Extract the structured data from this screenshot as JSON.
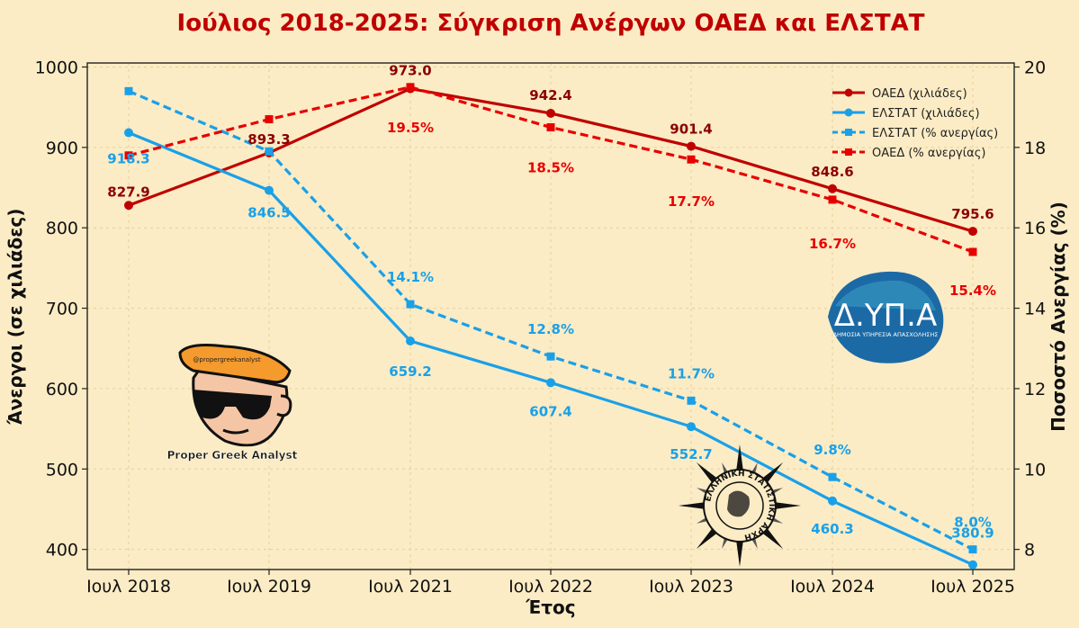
{
  "chart_data": {
    "type": "line",
    "title": "Ιούλιος 2018-2025: Σύγκριση Ανέργων ΟΑΕΔ και ΕΛΣΤΑΤ",
    "xlabel": "Έτος",
    "ylabel": "Άνεργοι (σε χιλιάδες)",
    "y2label": "Ποσοστό Ανεργίας (%)",
    "categories": [
      "Ιουλ 2018",
      "Ιουλ 2019",
      "Ιουλ 2021",
      "Ιουλ 2022",
      "Ιουλ 2023",
      "Ιουλ 2024",
      "Ιουλ 2025"
    ],
    "ylim": [
      375,
      1005
    ],
    "y2lim": [
      7.5,
      20.1
    ],
    "yticks": [
      400,
      500,
      600,
      700,
      800,
      900,
      1000
    ],
    "y2ticks": [
      8,
      10,
      12,
      14,
      16,
      18,
      20
    ],
    "grid": true,
    "legend_position": "top-right",
    "series": [
      {
        "name": "ΟΑΕΔ (χιλιάδες)",
        "axis": "left",
        "style": "solid",
        "marker": "circle",
        "color": "#c00000",
        "values": [
          827.9,
          893.3,
          973.0,
          942.4,
          901.4,
          848.6,
          795.6
        ],
        "labels": [
          "827.9",
          "893.3",
          "973.0",
          "942.4",
          "901.4",
          "848.6",
          "795.6"
        ]
      },
      {
        "name": "ΕΛΣΤΑΤ (χιλιάδες)",
        "axis": "left",
        "style": "solid",
        "marker": "circle",
        "color": "#1aa0e8",
        "values": [
          918.3,
          846.5,
          659.2,
          607.4,
          552.7,
          460.3,
          380.9
        ],
        "labels": [
          "918.3",
          "846.5",
          "659.2",
          "607.4",
          "552.7",
          "460.3",
          "380.9"
        ]
      },
      {
        "name": "ΕΛΣΤΑΤ (% ανεργίας)",
        "axis": "right",
        "style": "dashed",
        "marker": "square",
        "color": "#1aa0e8",
        "values": [
          19.4,
          17.9,
          14.1,
          12.8,
          11.7,
          9.8,
          8.0
        ],
        "labels": [
          "",
          "",
          "14.1%",
          "12.8%",
          "11.7%",
          "9.8%",
          "8.0%"
        ]
      },
      {
        "name": "ΟΑΕΔ (% ανεργίας)",
        "axis": "right",
        "style": "dashed",
        "marker": "square",
        "color": "#e80000",
        "values": [
          17.8,
          18.7,
          19.5,
          18.5,
          17.7,
          16.7,
          15.4
        ],
        "labels": [
          "",
          "",
          "19.5%",
          "18.5%",
          "17.7%",
          "16.7%",
          "15.4%"
        ]
      }
    ]
  },
  "logos": {
    "analyst_text": "Proper Greek Analyst",
    "analyst_handle": "@propergreekanalyst",
    "dypa_title": "Δ.ΥΠ.Α",
    "dypa_subtitle": "ΔΗΜΟΣΙΑ ΥΠΗΡΕΣΙΑ ΑΠΑΣΧΟΛΗΣΗΣ",
    "elstat_text": "ΕΛΛΗΝΙΚΗ ΣΤΑΤΙΣΤΙΚΗ ΑΡΧΗ"
  }
}
